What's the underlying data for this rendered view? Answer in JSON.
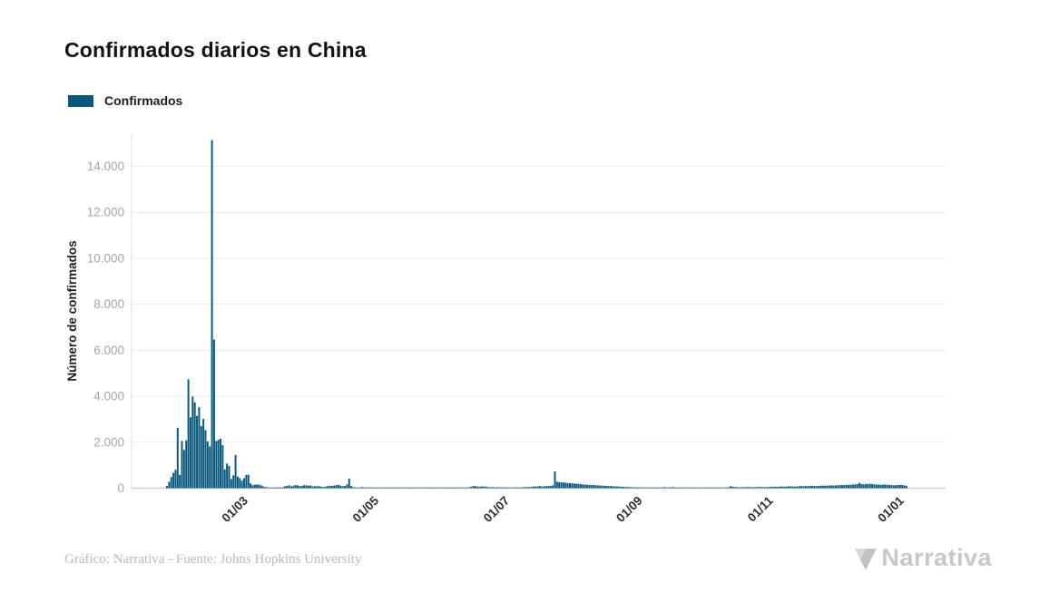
{
  "header": {
    "title": "Confirmados diarios en China"
  },
  "legend": {
    "items": [
      {
        "label": "Confirmados",
        "color": "#07567c"
      }
    ]
  },
  "footer": {
    "credit": "Gráfico: Narrativa - Fuente: Johns Hopkins University",
    "logo_text": "Narrativa"
  },
  "colors": {
    "bar": "#07567c",
    "gridline": "#ececec",
    "axis_left": "#dedede",
    "axis_bottom": "#cfcfcf",
    "y_tick_label": "#a6a6a6",
    "x_tick_label": "#2e2e2e",
    "y_axis_title": "#1f1f1f",
    "title": "#121212",
    "credit": "#b9b9b9",
    "logo_light": "#d8d8d8",
    "logo_dark": "#c2c2c2"
  },
  "chart_data": {
    "type": "bar",
    "title": "Confirmados diarios en China",
    "series_name": "Confirmados",
    "xlabel": "",
    "ylabel": "Número de confirmados",
    "bar_color": "#07567c",
    "grid": "horizontal",
    "legend_position": "top-left",
    "ylim": [
      0,
      15440
    ],
    "y_ticks": [
      0,
      2000,
      4000,
      6000,
      8000,
      10000,
      12000,
      14000
    ],
    "y_tick_labels": [
      "0",
      "2.000",
      "4.000",
      "6.000",
      "8.000",
      "10.000",
      "12.000",
      "14.000"
    ],
    "x_tick_format": "dd/mm",
    "x_ticks": [
      {
        "index": 38,
        "label": "01/03"
      },
      {
        "index": 99,
        "label": "01/05"
      },
      {
        "index": 160,
        "label": "01/07"
      },
      {
        "index": 222,
        "label": "01/09"
      },
      {
        "index": 283,
        "label": "01/11"
      },
      {
        "index": 344,
        "label": "01/01"
      }
    ],
    "start_date": "2020-01-23",
    "values": [
      95,
      277,
      486,
      669,
      802,
      2632,
      578,
      2054,
      1661,
      2089,
      4739,
      3086,
      3991,
      3733,
      3147,
      3523,
      2704,
      3015,
      2525,
      2032,
      1820,
      15136,
      6463,
      2055,
      2100,
      2153,
      1870,
      823,
      1076,
      969,
      400,
      559,
      1445,
      508,
      433,
      327,
      435,
      579,
      579,
      206,
      130,
      151,
      160,
      154,
      120,
      75,
      53,
      29,
      31,
      26,
      23,
      18,
      27,
      29,
      39,
      84,
      94,
      126,
      78,
      110,
      134,
      119,
      90,
      100,
      129,
      124,
      107,
      117,
      77,
      90,
      84,
      89,
      62,
      47,
      65,
      89,
      108,
      99,
      111,
      130,
      146,
      108,
      89,
      92,
      160,
      420,
      96,
      44,
      30,
      22,
      30,
      48,
      33,
      22,
      15,
      10,
      22,
      26,
      29,
      12,
      13,
      12,
      11,
      23,
      9,
      17,
      14,
      20,
      23,
      25,
      15,
      17,
      21,
      19,
      25,
      28,
      31,
      27,
      31,
      30,
      25,
      28,
      11,
      15,
      27,
      22,
      23,
      16,
      14,
      22,
      31,
      24,
      25,
      15,
      11,
      14,
      19,
      25,
      24,
      22,
      28,
      35,
      68,
      97,
      86,
      72,
      63,
      79,
      71,
      67,
      44,
      37,
      45,
      39,
      42,
      37,
      30,
      29,
      31,
      34,
      24,
      27,
      34,
      32,
      27,
      31,
      40,
      45,
      52,
      47,
      55,
      69,
      73,
      80,
      90,
      75,
      82,
      88,
      95,
      105,
      120,
      730,
      280,
      260,
      250,
      245,
      235,
      225,
      220,
      210,
      200,
      195,
      185,
      175,
      165,
      160,
      150,
      145,
      140,
      135,
      130,
      120,
      115,
      110,
      105,
      100,
      95,
      90,
      85,
      80,
      75,
      70,
      65,
      60,
      55,
      50,
      45,
      40,
      38,
      36,
      34,
      32,
      30,
      28,
      27,
      26,
      25,
      24,
      23,
      22,
      21,
      20,
      44,
      32,
      25,
      22,
      48,
      25,
      22,
      20,
      19,
      18,
      17,
      30,
      28,
      26,
      24,
      22,
      21,
      20,
      19,
      18,
      22,
      25,
      28,
      30,
      27,
      32,
      35,
      30,
      28,
      33,
      42,
      86,
      64,
      51,
      45,
      40,
      38,
      44,
      48,
      52,
      47,
      43,
      40,
      45,
      50,
      55,
      47,
      42,
      48,
      52,
      58,
      60,
      65,
      58,
      70,
      74,
      68,
      72,
      78,
      82,
      75,
      70,
      80,
      86,
      92,
      88,
      95,
      90,
      98,
      104,
      96,
      92,
      100,
      108,
      112,
      105,
      110,
      118,
      122,
      115,
      120,
      128,
      135,
      130,
      140,
      148,
      142,
      150,
      158,
      165,
      172,
      230,
      180,
      168,
      175,
      182,
      190,
      176,
      165,
      158,
      150,
      145,
      152,
      160,
      148,
      140,
      132,
      126,
      130,
      138,
      144,
      136,
      120,
      104
    ]
  }
}
